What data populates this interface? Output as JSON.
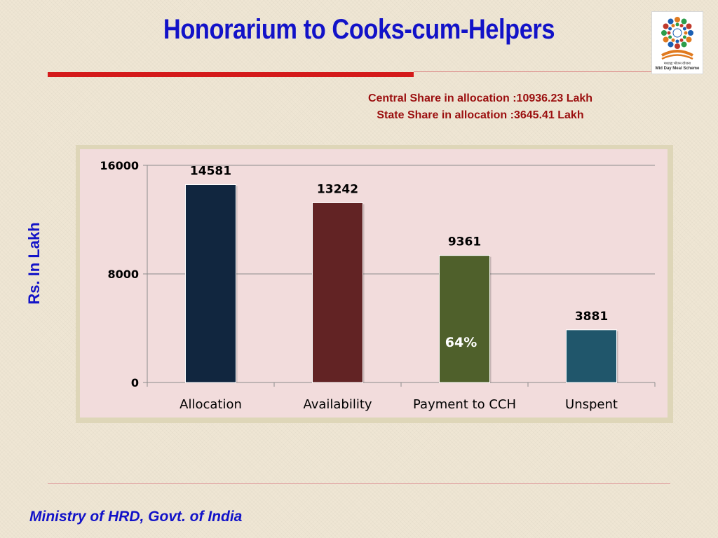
{
  "slide": {
    "title": "Honorarium to Cooks-cum-Helpers",
    "central_share": "Central Share in allocation :10936.23 Lakh",
    "state_share": "State Share in allocation :3645.41 Lakh",
    "y_axis_title": "Rs. In Lakh",
    "footer": "Ministry of HRD, Govt. of India",
    "logo": {
      "icon": "mid-day-meal-logo",
      "caption_hindi": "मध्याह्न भोजन योजना",
      "caption": "Mid Day Meal Scheme"
    }
  },
  "chart_data": {
    "type": "bar",
    "categories": [
      "Allocation",
      "Availability",
      "Payment to CCH",
      "Unspent"
    ],
    "values": [
      14581,
      13242,
      9361,
      3881
    ],
    "data_labels": [
      "14581",
      "13242",
      "9361",
      "3881"
    ],
    "colors": [
      "#11263f",
      "#622324",
      "#4f602b",
      "#20566b"
    ],
    "ylim": [
      0,
      16000
    ],
    "yticks": [
      0,
      8000,
      16000
    ],
    "ytick_labels": [
      "0",
      "8000",
      "16000"
    ],
    "grid": true,
    "legend": "none",
    "ylabel": "Rs. In Lakh",
    "annotations": [
      {
        "category": "Payment to CCH",
        "text": "64%"
      }
    ]
  }
}
